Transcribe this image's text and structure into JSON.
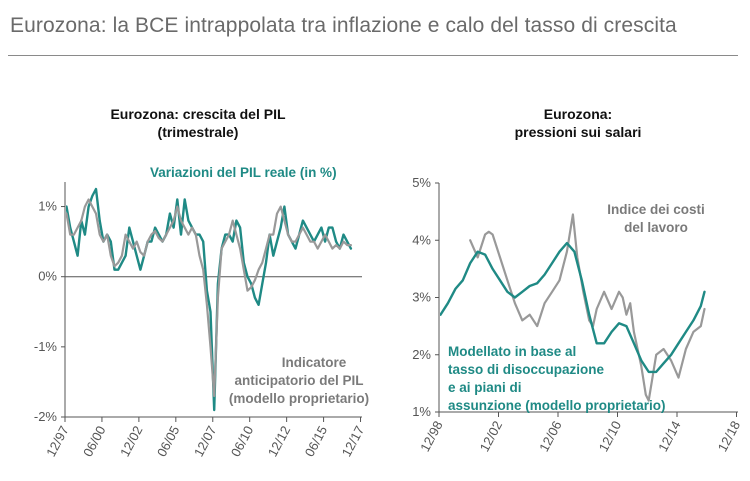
{
  "page_title": "Eurozona: la BCE intrappolata tra inflazione e calo del tasso di crescita",
  "colors": {
    "teal": "#1f8a85",
    "grey": "#999999",
    "axis": "#555555",
    "title_rule": "#8a8a8a"
  },
  "chart_data": [
    {
      "type": "line",
      "title_lines": [
        "Eurozona: crescita del PIL",
        "(trimestrale)"
      ],
      "ylim": [
        -2,
        1.35
      ],
      "yticks": [
        1,
        0,
        -1,
        -2
      ],
      "ytick_labels": [
        "1%",
        "0%",
        "-1%",
        "-2%"
      ],
      "xlim": [
        1997.9,
        2018.0
      ],
      "xticks": [
        1997.9,
        2000.4,
        2002.9,
        2005.4,
        2007.9,
        2010.4,
        2012.9,
        2015.4,
        2017.9
      ],
      "xtick_labels": [
        "12/97",
        "06/00",
        "12/02",
        "06/05",
        "12/07",
        "06/10",
        "12/12",
        "06/15",
        "12/17"
      ],
      "annotations": [
        {
          "text": "Variazioni del PIL reale (in %)",
          "series": "Variazioni del PIL reale (in %)"
        },
        {
          "text": "Indicatore",
          "series": "Indicatore anticipatorio del PIL (modello proprietario)"
        },
        {
          "text": "anticipatorio del PIL",
          "series": "Indicatore anticipatorio del PIL (modello proprietario)"
        },
        {
          "text": "(modello proprietario)",
          "series": "Indicatore anticipatorio del PIL (modello proprietario)"
        }
      ],
      "series": [
        {
          "name": "Variazioni del PIL reale (in %)",
          "color": "teal",
          "x": [
            1998.0,
            1998.25,
            1998.5,
            1998.75,
            1999.0,
            1999.25,
            1999.5,
            1999.75,
            2000.0,
            2000.25,
            2000.5,
            2000.75,
            2001.0,
            2001.25,
            2001.5,
            2001.75,
            2002.0,
            2002.25,
            2002.5,
            2002.75,
            2003.0,
            2003.25,
            2003.5,
            2003.75,
            2004.0,
            2004.25,
            2004.5,
            2004.75,
            2005.0,
            2005.25,
            2005.5,
            2005.75,
            2006.0,
            2006.25,
            2006.5,
            2006.75,
            2007.0,
            2007.25,
            2007.5,
            2007.75,
            2008.0,
            2008.25,
            2008.5,
            2008.75,
            2009.0,
            2009.25,
            2009.5,
            2009.75,
            2010.0,
            2010.25,
            2010.5,
            2010.75,
            2011.0,
            2011.25,
            2011.5,
            2011.75,
            2012.0,
            2012.25,
            2012.5,
            2012.75,
            2013.0,
            2013.25,
            2013.5,
            2013.75,
            2014.0,
            2014.25,
            2014.5,
            2014.75,
            2015.0,
            2015.25,
            2015.5,
            2015.75,
            2016.0,
            2016.25,
            2016.5,
            2016.75,
            2017.0,
            2017.25
          ],
          "y": [
            1.0,
            0.7,
            0.5,
            0.3,
            0.8,
            0.6,
            1.0,
            1.15,
            1.25,
            0.8,
            0.5,
            0.6,
            0.5,
            0.1,
            0.1,
            0.2,
            0.3,
            0.7,
            0.5,
            0.3,
            0.1,
            0.3,
            0.5,
            0.5,
            0.7,
            0.6,
            0.5,
            0.6,
            0.9,
            0.7,
            1.1,
            0.6,
            1.1,
            0.8,
            0.7,
            0.6,
            0.6,
            0.5,
            -0.2,
            -0.5,
            -1.9,
            -0.1,
            0.4,
            0.6,
            0.6,
            0.5,
            0.8,
            0.7,
            0.2,
            0.0,
            -0.1,
            -0.3,
            -0.4,
            -0.1,
            0.2,
            0.6,
            0.3,
            0.5,
            0.7,
            1.0,
            0.6,
            0.5,
            0.4,
            0.6,
            0.8,
            0.7,
            0.6,
            0.5,
            0.6,
            0.7,
            0.5,
            0.7,
            0.7,
            0.5,
            0.4,
            0.6,
            0.5,
            0.4
          ]
        },
        {
          "name": "Indicatore anticipatorio del PIL (modello proprietario)",
          "color": "grey",
          "x": [
            1998.0,
            1998.25,
            1998.5,
            1998.75,
            1999.0,
            1999.25,
            1999.5,
            1999.75,
            2000.0,
            2000.25,
            2000.5,
            2000.75,
            2001.0,
            2001.25,
            2001.5,
            2001.75,
            2002.0,
            2002.25,
            2002.5,
            2002.75,
            2003.0,
            2003.25,
            2003.5,
            2003.75,
            2004.0,
            2004.25,
            2004.5,
            2004.75,
            2005.0,
            2005.25,
            2005.5,
            2005.75,
            2006.0,
            2006.25,
            2006.5,
            2006.75,
            2007.0,
            2007.25,
            2007.5,
            2007.75,
            2008.0,
            2008.25,
            2008.5,
            2008.75,
            2009.0,
            2009.25,
            2009.5,
            2009.75,
            2010.0,
            2010.25,
            2010.5,
            2010.75,
            2011.0,
            2011.25,
            2011.5,
            2011.75,
            2012.0,
            2012.25,
            2012.5,
            2012.75,
            2013.0,
            2013.25,
            2013.5,
            2013.75,
            2014.0,
            2014.25,
            2014.5,
            2014.75,
            2015.0,
            2015.25,
            2015.5,
            2015.75,
            2016.0,
            2016.25,
            2016.5,
            2016.75,
            2017.0,
            2017.25
          ],
          "y": [
            0.9,
            0.6,
            0.6,
            0.7,
            0.8,
            1.0,
            1.1,
            1.0,
            0.9,
            0.6,
            0.5,
            0.6,
            0.3,
            0.15,
            0.2,
            0.3,
            0.6,
            0.5,
            0.4,
            0.5,
            0.35,
            0.3,
            0.5,
            0.6,
            0.65,
            0.55,
            0.5,
            0.6,
            0.7,
            0.8,
            1.0,
            0.8,
            0.7,
            0.6,
            0.7,
            0.6,
            0.3,
            0.1,
            -0.4,
            -1.0,
            -1.7,
            -0.3,
            0.4,
            0.5,
            0.6,
            0.8,
            0.6,
            0.4,
            0.1,
            -0.2,
            -0.15,
            -0.05,
            0.1,
            0.2,
            0.4,
            0.6,
            0.6,
            0.9,
            1.0,
            0.8,
            0.6,
            0.5,
            0.5,
            0.6,
            0.7,
            0.6,
            0.5,
            0.5,
            0.4,
            0.5,
            0.6,
            0.5,
            0.4,
            0.45,
            0.4,
            0.5,
            0.45,
            0.45
          ]
        }
      ]
    },
    {
      "type": "line",
      "title_lines": [
        "Eurozona:",
        "pressioni sui salari"
      ],
      "ylim": [
        1,
        5
      ],
      "yticks": [
        5,
        4,
        3,
        2,
        1
      ],
      "ytick_labels": [
        "5%",
        "4%",
        "3%",
        "2%",
        "1%"
      ],
      "xlim": [
        1998.9,
        2019.0
      ],
      "xticks": [
        1998.9,
        2002.9,
        2006.9,
        2010.9,
        2014.9,
        2018.9
      ],
      "xtick_labels": [
        "12/98",
        "12/02",
        "12/06",
        "12/10",
        "12/14",
        "12/18"
      ],
      "annotations": [
        {
          "text": "Indice dei costi",
          "series": "Indice dei costi del lavoro"
        },
        {
          "text": "del lavoro",
          "series": "Indice dei costi del lavoro"
        },
        {
          "text": "Modellato in base al",
          "series": "Modellato in base al tasso di disoccupazione e ai piani di assunzione (modello proprietario)"
        },
        {
          "text": "tasso di disoccupazione",
          "series": "Modellato in base al tasso di disoccupazione e ai piani di assunzione (modello proprietario)"
        },
        {
          "text": "e ai piani di",
          "series": "Modellato in base al tasso di disoccupazione e ai piani di assunzione (modello proprietario)"
        },
        {
          "text": "assunzione (modello proprietario)",
          "series": "Modellato in base al tasso di disoccupazione e ai piani di assunzione (modello proprietario)"
        }
      ],
      "series": [
        {
          "name": "Indice dei costi del lavoro",
          "color": "grey",
          "x": [
            2001.0,
            2001.5,
            2002.0,
            2002.25,
            2002.5,
            2003.0,
            2003.5,
            2004.0,
            2004.5,
            2005.0,
            2005.5,
            2006.0,
            2006.5,
            2007.0,
            2007.5,
            2007.9,
            2008.2,
            2008.6,
            2009.0,
            2009.25,
            2009.5,
            2010.0,
            2010.5,
            2011.0,
            2011.25,
            2011.5,
            2011.75,
            2012.0,
            2012.5,
            2012.8,
            2013.0,
            2013.5,
            2014.0,
            2014.5,
            2015.0,
            2015.5,
            2016.0,
            2016.5,
            2016.75
          ],
          "y": [
            4.0,
            3.7,
            4.1,
            4.15,
            4.1,
            3.7,
            3.3,
            2.9,
            2.6,
            2.7,
            2.5,
            2.9,
            3.1,
            3.3,
            3.8,
            4.45,
            3.7,
            3.1,
            2.6,
            2.5,
            2.8,
            3.1,
            2.8,
            3.1,
            3.0,
            2.7,
            2.9,
            2.4,
            1.8,
            1.3,
            1.2,
            2.0,
            2.1,
            1.9,
            1.6,
            2.1,
            2.4,
            2.5,
            2.8
          ]
        },
        {
          "name": "Modellato in base al tasso di disoccupazione e ai piani di assunzione (modello proprietario)",
          "color": "teal",
          "x": [
            1999.0,
            1999.5,
            2000.0,
            2000.5,
            2001.0,
            2001.5,
            2002.0,
            2002.5,
            2003.0,
            2003.5,
            2004.0,
            2004.5,
            2005.0,
            2005.5,
            2006.0,
            2006.5,
            2007.0,
            2007.5,
            2008.0,
            2008.5,
            2009.0,
            2009.5,
            2010.0,
            2010.5,
            2011.0,
            2011.5,
            2012.0,
            2012.5,
            2013.0,
            2013.5,
            2014.0,
            2014.5,
            2015.0,
            2015.5,
            2016.0,
            2016.5,
            2016.75
          ],
          "y": [
            2.7,
            2.9,
            3.15,
            3.3,
            3.6,
            3.8,
            3.75,
            3.5,
            3.3,
            3.1,
            3.0,
            3.1,
            3.2,
            3.25,
            3.4,
            3.6,
            3.8,
            3.95,
            3.8,
            3.3,
            2.7,
            2.2,
            2.2,
            2.4,
            2.55,
            2.5,
            2.2,
            1.9,
            1.7,
            1.7,
            1.85,
            2.0,
            2.2,
            2.4,
            2.6,
            2.85,
            3.1
          ]
        }
      ]
    }
  ]
}
